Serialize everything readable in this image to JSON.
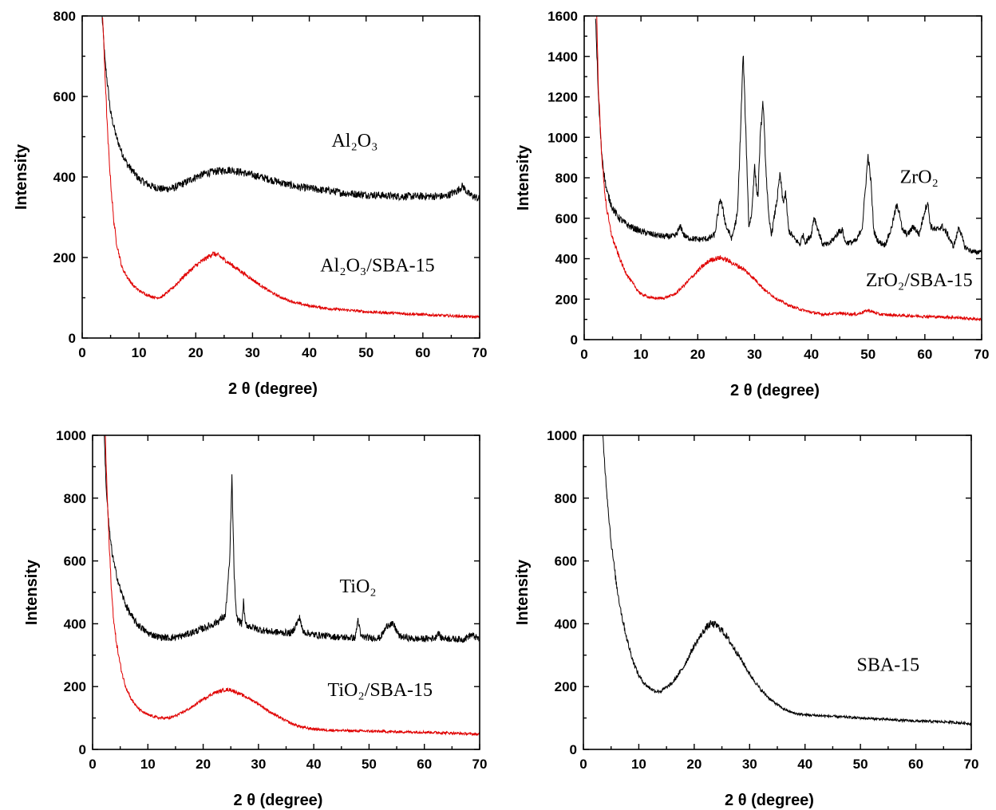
{
  "chart_data": [
    {
      "type": "line",
      "xlabel": "2 θ (degree)",
      "ylabel": "Intensity",
      "xlim": [
        0,
        70
      ],
      "ylim": [
        0,
        800
      ],
      "xticks": [
        0,
        10,
        20,
        30,
        40,
        50,
        60,
        70
      ],
      "yticks": [
        0,
        200,
        400,
        600,
        800
      ],
      "grid": false,
      "series": [
        {
          "name": "Al2O3",
          "color": "#000000",
          "x": [
            3.5,
            4,
            5,
            6,
            7,
            8,
            10,
            12,
            14,
            16,
            18,
            20,
            22,
            24,
            26,
            28,
            30,
            32,
            34,
            36,
            38,
            40,
            42,
            44,
            46,
            48,
            50,
            52,
            54,
            56,
            58,
            60,
            62,
            64,
            66,
            67,
            68,
            70
          ],
          "values": [
            800,
            690,
            560,
            500,
            460,
            430,
            395,
            378,
            370,
            372,
            385,
            400,
            410,
            415,
            418,
            412,
            405,
            398,
            390,
            382,
            375,
            372,
            368,
            365,
            360,
            358,
            356,
            355,
            353,
            352,
            352,
            352,
            352,
            352,
            365,
            378,
            358,
            345
          ]
        },
        {
          "name": "Al2O3/SBA-15",
          "color": "#e00000",
          "x": [
            3.6,
            4,
            4.5,
            5,
            5.5,
            6,
            7,
            8,
            9,
            10,
            11,
            12,
            13,
            14,
            16,
            18,
            20,
            22,
            23,
            24,
            25,
            26,
            28,
            30,
            32,
            34,
            36,
            38,
            40,
            42,
            44,
            46,
            48,
            50,
            55,
            60,
            65,
            70
          ],
          "values": [
            800,
            660,
            500,
            390,
            300,
            240,
            175,
            150,
            130,
            118,
            110,
            104,
            100,
            102,
            125,
            155,
            180,
            200,
            210,
            205,
            195,
            185,
            165,
            145,
            125,
            108,
            95,
            86,
            80,
            76,
            72,
            70,
            68,
            65,
            62,
            58,
            55,
            52
          ]
        }
      ],
      "annotations": [
        {
          "text": "Al₂O₃",
          "x": 48,
          "y": 475
        },
        {
          "text": "Al₂O₃/SBA-15",
          "x": 52,
          "y": 165
        }
      ]
    },
    {
      "type": "line",
      "xlabel": "2 θ (degree)",
      "ylabel": "Intensity",
      "xlim": [
        0,
        70
      ],
      "ylim": [
        0,
        1600
      ],
      "xticks": [
        0,
        10,
        20,
        30,
        40,
        50,
        60,
        70
      ],
      "yticks": [
        0,
        200,
        400,
        600,
        800,
        1000,
        1200,
        1400,
        1600
      ],
      "grid": false,
      "series": [
        {
          "name": "ZrO2",
          "color": "#000000",
          "x": [
            2,
            2.5,
            3,
            3.5,
            4,
            5,
            6,
            7,
            8,
            10,
            12,
            14,
            16,
            17,
            17.5,
            18,
            20,
            22,
            23,
            24,
            25,
            26,
            27,
            27.5,
            28,
            28.5,
            29,
            29.5,
            30,
            30.3,
            30.6,
            31,
            31.5,
            32,
            32.5,
            33,
            34,
            34.5,
            35,
            35.5,
            36,
            37,
            38,
            38.5,
            39,
            40,
            40.5,
            41,
            42,
            43,
            44,
            45,
            45.5,
            46,
            47,
            48,
            49,
            49.5,
            50,
            50.5,
            51,
            51.5,
            52,
            53,
            54,
            55,
            55.5,
            56,
            57,
            58,
            59,
            60,
            60.5,
            61,
            62,
            63,
            64,
            65,
            65.5,
            66,
            67,
            68,
            69,
            70
          ],
          "values": [
            1600,
            1200,
            950,
            820,
            730,
            650,
            605,
            580,
            560,
            535,
            520,
            510,
            510,
            560,
            520,
            505,
            495,
            500,
            520,
            700,
            560,
            500,
            620,
            1000,
            1420,
            1000,
            560,
            620,
            860,
            760,
            700,
            1000,
            1180,
            850,
            600,
            520,
            700,
            820,
            680,
            720,
            540,
            500,
            470,
            520,
            480,
            520,
            610,
            560,
            470,
            470,
            500,
            540,
            540,
            480,
            480,
            490,
            560,
            740,
            910,
            780,
            540,
            500,
            480,
            470,
            540,
            660,
            640,
            540,
            520,
            560,
            520,
            640,
            680,
            560,
            540,
            560,
            520,
            460,
            500,
            560,
            460,
            440,
            430,
            440
          ]
        },
        {
          "name": "ZrO2/SBA-15",
          "color": "#e00000",
          "x": [
            2.2,
            2.5,
            3,
            3.5,
            4,
            4.5,
            5,
            6,
            7,
            8,
            9,
            10,
            12,
            14,
            16,
            18,
            20,
            22,
            23,
            24,
            25,
            26,
            28,
            30,
            32,
            34,
            36,
            38,
            40,
            42,
            45,
            48,
            50,
            52,
            55,
            60,
            65,
            70
          ],
          "values": [
            1600,
            1250,
            950,
            760,
            640,
            560,
            500,
            420,
            350,
            300,
            260,
            225,
            205,
            205,
            225,
            280,
            340,
            390,
            400,
            405,
            395,
            380,
            350,
            300,
            240,
            200,
            170,
            150,
            135,
            125,
            130,
            125,
            145,
            125,
            120,
            115,
            110,
            100
          ]
        }
      ],
      "annotations": [
        {
          "text": "ZrO₂",
          "x": 59,
          "y": 775
        },
        {
          "text": "ZrO₂/SBA-15",
          "x": 59,
          "y": 265
        }
      ]
    },
    {
      "type": "line",
      "xlabel": "2 θ (degree)",
      "ylabel": "Intensity",
      "xlim": [
        0,
        70
      ],
      "ylim": [
        0,
        1000
      ],
      "xticks": [
        0,
        10,
        20,
        30,
        40,
        50,
        60,
        70
      ],
      "yticks": [
        0,
        200,
        400,
        600,
        800,
        1000
      ],
      "grid": false,
      "series": [
        {
          "name": "TiO2",
          "color": "#000000",
          "x": [
            2.1,
            2.5,
            3,
            3.5,
            4,
            5,
            6,
            7,
            8,
            10,
            12,
            14,
            16,
            18,
            20,
            22,
            24,
            24.8,
            25.2,
            25.6,
            26,
            27,
            27.3,
            27.6,
            28,
            30,
            32,
            34,
            36,
            37.5,
            38,
            40,
            42,
            44,
            46,
            47.5,
            48,
            48.5,
            50,
            52,
            53.5,
            54.5,
            55.5,
            58,
            60,
            62,
            62.5,
            63,
            65,
            67,
            68.5,
            70
          ],
          "values": [
            1000,
            820,
            700,
            630,
            580,
            510,
            460,
            425,
            400,
            370,
            358,
            355,
            360,
            372,
            385,
            400,
            425,
            600,
            870,
            560,
            420,
            400,
            470,
            400,
            395,
            382,
            375,
            372,
            370,
            420,
            375,
            365,
            362,
            358,
            356,
            355,
            415,
            360,
            355,
            355,
            400,
            395,
            360,
            352,
            352,
            355,
            375,
            355,
            352,
            350,
            365,
            350
          ]
        },
        {
          "name": "TiO2/SBA-15",
          "color": "#e00000",
          "x": [
            2.3,
            2.5,
            3,
            3.5,
            4,
            4.5,
            5,
            5.5,
            6,
            7,
            8,
            9,
            10,
            12,
            14,
            16,
            18,
            20,
            22,
            24,
            25,
            26,
            28,
            30,
            32,
            34,
            36,
            38,
            40,
            42,
            45,
            50,
            55,
            60,
            65,
            70
          ],
          "values": [
            1000,
            880,
            650,
            480,
            380,
            320,
            270,
            230,
            200,
            160,
            135,
            120,
            110,
            100,
            100,
            115,
            135,
            160,
            180,
            190,
            190,
            182,
            165,
            145,
            120,
            100,
            82,
            70,
            65,
            62,
            60,
            58,
            56,
            55,
            52,
            48
          ]
        }
      ],
      "annotations": [
        {
          "text": "TiO₂",
          "x": 48,
          "y": 500
        },
        {
          "text": "TiO₂/SBA-15",
          "x": 52,
          "y": 170
        }
      ]
    },
    {
      "type": "line",
      "xlabel": "2 θ (degree)",
      "ylabel": "Intensity",
      "xlim": [
        0,
        70
      ],
      "ylim": [
        0,
        1000
      ],
      "xticks": [
        0,
        10,
        20,
        30,
        40,
        50,
        60,
        70
      ],
      "yticks": [
        0,
        200,
        400,
        600,
        800,
        1000
      ],
      "grid": false,
      "series": [
        {
          "name": "SBA-15",
          "color": "#000000",
          "x": [
            3.5,
            4,
            4.5,
            5,
            5.5,
            6,
            7,
            8,
            9,
            10,
            11,
            12,
            13,
            14,
            16,
            18,
            20,
            22,
            23,
            24,
            25,
            26,
            28,
            30,
            32,
            34,
            36,
            38,
            40,
            42,
            45,
            50,
            55,
            60,
            65,
            70
          ],
          "values": [
            1000,
            870,
            760,
            660,
            590,
            520,
            420,
            340,
            280,
            235,
            210,
            195,
            185,
            185,
            210,
            260,
            330,
            385,
            400,
            395,
            380,
            355,
            300,
            240,
            190,
            155,
            130,
            115,
            110,
            108,
            105,
            100,
            95,
            90,
            88,
            82
          ]
        }
      ],
      "annotations": [
        {
          "text": "SBA-15",
          "x": 55,
          "y": 250
        }
      ]
    }
  ]
}
